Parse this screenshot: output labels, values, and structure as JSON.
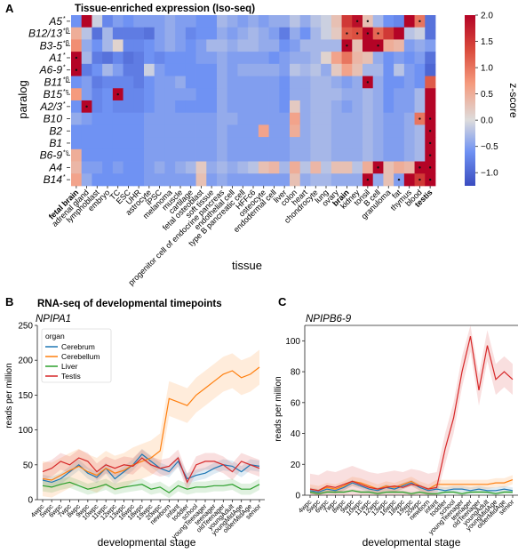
{
  "panels": {
    "a": "A",
    "b": "B",
    "c": "C"
  },
  "chart_data": [
    {
      "type": "heatmap",
      "title": "Tissue-enriched expression (Iso-seq)",
      "ylabel": "paralog",
      "xlabel": "tissue",
      "rows": [
        {
          "label": "A5",
          "sup": "*"
        },
        {
          "label": "B12/13",
          "sup": "*β"
        },
        {
          "label": "B3-5",
          "sup": "*β"
        },
        {
          "label": "A1",
          "sup": "*"
        },
        {
          "label": "A6-9",
          "sup": "*"
        },
        {
          "label": "B11",
          "sup": "*β"
        },
        {
          "label": "B15",
          "sup": "*s"
        },
        {
          "label": "A2/3",
          "sup": "*"
        },
        {
          "label": "B10",
          "sup": ""
        },
        {
          "label": "B2",
          "sup": ""
        },
        {
          "label": "B1",
          "sup": ""
        },
        {
          "label": "B6-9",
          "sup": "*s"
        },
        {
          "label": "A4",
          "sup": ""
        },
        {
          "label": "B14",
          "sup": "*"
        }
      ],
      "columns": [
        "fetal brain",
        "adrenal gland",
        "lymphoblast",
        "embryo",
        "TC",
        "ESC",
        "UHR",
        "astrocyte",
        "iPSC",
        "melanoma",
        "muscle",
        "cartilage",
        "fetal osteoblast",
        "soft tissue",
        "progenitor cell of endocrine pancreas",
        "endothelial cell",
        "type B pancreatic cell",
        "HFFc6",
        "osteocyte",
        "endodermal cell",
        "liver",
        "colon",
        "heart",
        "chondrocyte",
        "lung",
        "ovary",
        "brain",
        "kidney",
        "tonsil",
        "B cell",
        "granuloma",
        "fat",
        "thymus",
        "blood",
        "testis"
      ],
      "bold_columns": [
        "fetal brain",
        "brain",
        "testis"
      ],
      "values": [
        [
          -0.6,
          2.0,
          -0.1,
          -0.7,
          -0.5,
          -0.6,
          -0.5,
          -0.5,
          -0.5,
          -0.4,
          -0.5,
          -0.5,
          -0.6,
          -0.6,
          -0.3,
          -0.4,
          -0.5,
          -0.4,
          -0.5,
          -0.4,
          -0.4,
          -0.2,
          -0.4,
          -0.2,
          -0.1,
          0.3,
          1.5,
          1.9,
          0.3,
          -0.3,
          -0.6,
          -0.7,
          2.0,
          1.0,
          -0.9
        ],
        [
          0.5,
          -0.2,
          -0.9,
          -0.3,
          -0.8,
          -0.8,
          -0.8,
          -0.9,
          -0.5,
          -0.4,
          -0.5,
          -0.7,
          -0.6,
          -0.6,
          -0.4,
          -0.5,
          -0.4,
          -0.3,
          -0.4,
          -0.5,
          -0.8,
          -0.4,
          -0.6,
          -0.3,
          -0.1,
          0.2,
          1.2,
          1.3,
          2.0,
          1.1,
          1.5,
          2.0,
          -0.2,
          -0.1,
          -0.9
        ],
        [
          0.8,
          -0.4,
          -0.6,
          -0.3,
          0.1,
          -0.7,
          -0.7,
          -0.6,
          -0.5,
          -0.4,
          -0.5,
          -0.6,
          -0.5,
          -0.3,
          -0.3,
          -0.4,
          -0.3,
          -0.3,
          -0.4,
          -0.4,
          -0.6,
          -0.5,
          -0.3,
          -0.3,
          -0.3,
          -0.3,
          2.0,
          0.3,
          2.0,
          2.0,
          0.5,
          0.4,
          -0.5,
          -0.4,
          -0.5
        ],
        [
          2.0,
          -0.3,
          -0.8,
          -0.9,
          -0.7,
          -0.9,
          -0.8,
          -0.6,
          -0.7,
          -0.6,
          -0.6,
          -0.6,
          -0.5,
          -0.5,
          -0.4,
          -0.5,
          -0.5,
          -0.5,
          -0.5,
          -0.6,
          -0.5,
          -0.4,
          -0.4,
          -0.3,
          0.1,
          0.6,
          1.0,
          0.4,
          0.3,
          -0.4,
          -0.6,
          -0.5,
          -0.6,
          -0.5,
          -0.9
        ],
        [
          2.0,
          -0.8,
          -0.6,
          -0.3,
          -0.5,
          -0.8,
          -0.8,
          -0.1,
          -0.5,
          -0.6,
          -0.6,
          -0.6,
          -0.6,
          -0.6,
          -0.4,
          -0.5,
          -0.4,
          -0.4,
          -0.4,
          -0.4,
          -0.5,
          -0.2,
          -0.3,
          -0.2,
          -0.4,
          0.2,
          0.6,
          0.3,
          -0.3,
          -0.3,
          -0.6,
          -0.2,
          -0.5,
          -0.6,
          -1.0
        ],
        [
          -0.6,
          -0.5,
          -0.8,
          -0.7,
          -0.7,
          -0.7,
          -0.8,
          -0.6,
          -0.5,
          -0.5,
          -0.4,
          -0.6,
          -0.6,
          -0.6,
          -0.4,
          -0.5,
          -0.5,
          -0.5,
          -0.5,
          -0.5,
          -0.6,
          -0.4,
          -0.4,
          -0.3,
          -0.3,
          -0.4,
          -0.5,
          -0.4,
          2.0,
          -0.4,
          -0.6,
          -0.6,
          -0.5,
          -0.6,
          1.2
        ],
        [
          0.7,
          -0.5,
          -0.7,
          -0.6,
          2.0,
          -0.7,
          -0.7,
          -0.6,
          -0.5,
          -0.5,
          -0.5,
          -0.5,
          -0.6,
          -0.6,
          -0.4,
          -0.5,
          -0.5,
          -0.5,
          -0.5,
          -0.5,
          -0.6,
          -0.4,
          -0.4,
          -0.3,
          -0.3,
          -0.3,
          -0.4,
          -0.4,
          -0.3,
          -0.4,
          -0.6,
          -0.5,
          -0.5,
          -0.3,
          2.0
        ],
        [
          -0.6,
          2.0,
          -0.7,
          -0.6,
          -0.7,
          -0.7,
          -0.7,
          -0.6,
          -0.5,
          -0.5,
          -0.6,
          -0.6,
          -0.6,
          -0.6,
          -0.4,
          -0.5,
          -0.5,
          -0.5,
          -0.5,
          -0.5,
          -0.6,
          0.2,
          -0.4,
          -0.3,
          -0.3,
          -0.4,
          -0.5,
          -0.4,
          -0.3,
          -0.4,
          -0.6,
          -0.5,
          -0.5,
          -0.3,
          2.0
        ],
        [
          -0.4,
          -0.5,
          -0.6,
          -0.6,
          -0.6,
          -0.6,
          -0.6,
          -0.5,
          -0.5,
          -0.5,
          -0.5,
          -0.5,
          -0.5,
          -0.5,
          -0.4,
          -0.4,
          -0.5,
          -0.5,
          -0.5,
          -0.5,
          -0.5,
          0.6,
          -0.4,
          -0.3,
          -0.3,
          -0.4,
          -0.4,
          -0.4,
          -0.3,
          -0.4,
          -0.5,
          -0.5,
          -0.4,
          1.0,
          2.0
        ],
        [
          -0.6,
          -0.6,
          -0.6,
          -0.6,
          -0.6,
          -0.6,
          -0.6,
          -0.5,
          -0.5,
          -0.5,
          -0.5,
          -0.5,
          -0.5,
          -0.5,
          -0.4,
          -0.5,
          -0.5,
          -0.5,
          0.6,
          -0.5,
          -0.5,
          0.5,
          -0.4,
          -0.3,
          -0.3,
          -0.4,
          -0.4,
          -0.4,
          -0.3,
          -0.4,
          -0.5,
          -0.5,
          -0.4,
          -0.3,
          2.0
        ],
        [
          -0.6,
          -0.6,
          -0.6,
          -0.6,
          -0.6,
          -0.6,
          -0.6,
          -0.5,
          -0.5,
          -0.5,
          -0.5,
          -0.5,
          -0.5,
          -0.5,
          -0.4,
          -0.5,
          -0.5,
          -0.5,
          -0.5,
          -0.5,
          -0.5,
          -0.4,
          -0.4,
          -0.3,
          -0.3,
          -0.4,
          -0.4,
          -0.4,
          -0.3,
          -0.4,
          -0.5,
          -0.5,
          -0.4,
          -0.3,
          2.0
        ],
        [
          0.5,
          -0.6,
          -0.6,
          -0.6,
          -0.6,
          -0.6,
          -0.6,
          -0.5,
          -0.5,
          -0.5,
          -0.5,
          -0.5,
          -0.5,
          -0.5,
          -0.4,
          -0.5,
          -0.5,
          -0.5,
          -0.5,
          -0.5,
          -0.5,
          -0.4,
          -0.4,
          -0.3,
          -0.3,
          -0.4,
          -0.4,
          -0.4,
          -0.3,
          -0.4,
          -0.5,
          -0.5,
          -0.4,
          -0.3,
          2.0
        ],
        [
          0.4,
          -0.5,
          -0.5,
          -0.6,
          -0.5,
          -0.6,
          -0.6,
          -0.5,
          -0.4,
          -0.5,
          -0.4,
          -0.3,
          0.2,
          -0.4,
          -0.3,
          -0.4,
          -0.3,
          -0.2,
          0.3,
          0.4,
          -0.3,
          0.5,
          -0.2,
          0.4,
          -0.2,
          0.3,
          0.3,
          -0.2,
          0.5,
          2.0,
          0.3,
          0.5,
          0.4,
          2.0,
          2.0
        ],
        [
          0.6,
          -0.4,
          -0.6,
          -0.6,
          -0.6,
          -0.6,
          -0.6,
          -0.5,
          -0.5,
          -0.5,
          -0.5,
          -0.5,
          0.3,
          -0.5,
          -0.4,
          -0.5,
          -0.5,
          -0.5,
          -0.5,
          -0.5,
          -0.5,
          0.3,
          -0.4,
          -0.3,
          -0.3,
          -0.4,
          -0.4,
          -0.4,
          2.0,
          -0.4,
          0.3,
          -0.5,
          2.0,
          1.5,
          2.0
        ]
      ],
      "markers": [
        [
          0,
          27
        ],
        [
          0,
          28
        ],
        [
          0,
          33
        ],
        [
          1,
          26
        ],
        [
          1,
          27
        ],
        [
          1,
          28
        ],
        [
          1,
          29
        ],
        [
          2,
          26
        ],
        [
          2,
          29
        ],
        [
          3,
          0
        ],
        [
          4,
          0
        ],
        [
          5,
          28
        ],
        [
          6,
          4
        ],
        [
          7,
          1
        ],
        [
          8,
          33
        ],
        [
          8,
          34
        ],
        [
          9,
          34
        ],
        [
          10,
          34
        ],
        [
          11,
          34
        ],
        [
          12,
          29
        ],
        [
          12,
          33
        ],
        [
          12,
          34
        ],
        [
          13,
          28
        ],
        [
          13,
          31
        ],
        [
          13,
          33
        ],
        [
          13,
          34
        ]
      ],
      "colorbar": {
        "label": "z-score",
        "min": -1.25,
        "max": 2.0,
        "ticks": [
          "2.0",
          "1.5",
          "1.0",
          "0.5",
          "0.0",
          "−0.5",
          "−1.0"
        ]
      },
      "colors": {
        "low": "#3a4cc0",
        "mid": "#dddcdc",
        "high": "#b40426"
      }
    },
    {
      "type": "line",
      "title": "RNA-seq of developmental timepoints",
      "subtitle": "NPIPA1",
      "xlabel": "developmental stage",
      "ylabel": "reads per million",
      "ylim": [
        0,
        250
      ],
      "yticks": [
        0,
        50,
        100,
        150,
        200,
        250
      ],
      "x": [
        "4wpc",
        "5wpc",
        "6wpc",
        "7wpc",
        "8wpc",
        "9wpc",
        "10wpc",
        "11wpc",
        "12wpc",
        "13wpc",
        "16wpc",
        "18wpc",
        "19wpc",
        "20wpc",
        "newborn",
        "infant",
        "toddler",
        "school",
        "youngTeenager",
        "teenager",
        "oldTeenager",
        "youngAdult",
        "youngMidAge",
        "olderMidAge",
        "senior"
      ],
      "legend": {
        "title": "organ",
        "placement": "upper-left"
      },
      "series": [
        {
          "name": "Cerebrum",
          "color": "#1f77b4",
          "values": [
            28,
            25,
            30,
            40,
            50,
            38,
            32,
            45,
            30,
            40,
            50,
            65,
            55,
            45,
            40,
            55,
            30,
            35,
            38,
            45,
            50,
            48,
            40,
            50,
            48
          ],
          "band": 8
        },
        {
          "name": "Cerebellum",
          "color": "#ff7f0e",
          "values": [
            30,
            28,
            35,
            42,
            48,
            40,
            35,
            45,
            38,
            42,
            50,
            55,
            60,
            70,
            145,
            140,
            135,
            150,
            160,
            170,
            180,
            185,
            175,
            180,
            190
          ],
          "band": 25
        },
        {
          "name": "Liver",
          "color": "#2ca02c",
          "values": [
            20,
            18,
            22,
            25,
            20,
            15,
            18,
            22,
            15,
            18,
            20,
            22,
            15,
            18,
            10,
            20,
            15,
            18,
            18,
            20,
            20,
            22,
            15,
            15,
            22
          ],
          "band": 8
        },
        {
          "name": "Testis",
          "color": "#d62728",
          "values": [
            40,
            45,
            55,
            50,
            60,
            55,
            40,
            50,
            45,
            50,
            48,
            60,
            50,
            45,
            48,
            60,
            25,
            50,
            55,
            55,
            50,
            40,
            55,
            50,
            45
          ],
          "band": 12
        }
      ]
    },
    {
      "type": "line",
      "subtitle": "NPIPB6-9",
      "xlabel": "developmental stage",
      "ylabel": "reads per million",
      "ylim": [
        0,
        110
      ],
      "yticks": [
        0,
        20,
        40,
        60,
        80,
        100
      ],
      "x": [
        "4wpc",
        "5wpc",
        "6wpc",
        "7wpc",
        "8wpc",
        "9wpc",
        "10wpc",
        "11wpc",
        "12wpc",
        "13wpc",
        "16wpc",
        "18wpc",
        "19wpc",
        "20wpc",
        "newborn",
        "infant",
        "toddler",
        "school",
        "youngTeenager",
        "teenager",
        "oldTeenager",
        "youngAdult",
        "youngMidAge",
        "olderMidAge",
        "senior"
      ],
      "series": [
        {
          "name": "Cerebrum",
          "color": "#1f77b4",
          "values": [
            3,
            2,
            4,
            3,
            5,
            8,
            6,
            4,
            3,
            5,
            4,
            6,
            8,
            5,
            3,
            4,
            3,
            4,
            4,
            3,
            4,
            3,
            3,
            4,
            3
          ],
          "band": 2
        },
        {
          "name": "Cerebellum",
          "color": "#ff7f0e",
          "values": [
            4,
            3,
            5,
            4,
            6,
            9,
            8,
            6,
            4,
            6,
            5,
            7,
            9,
            6,
            4,
            7,
            7,
            7,
            7,
            7,
            7,
            7,
            8,
            8,
            10
          ],
          "band": 3
        },
        {
          "name": "Liver",
          "color": "#2ca02c",
          "values": [
            2,
            1,
            2,
            2,
            2,
            3,
            2,
            2,
            1,
            2,
            2,
            2,
            1,
            2,
            1,
            1,
            2,
            2,
            1,
            2,
            2,
            2,
            1,
            2,
            2
          ],
          "band": 1
        },
        {
          "name": "Testis",
          "color": "#d62728",
          "values": [
            4,
            3,
            6,
            5,
            7,
            9,
            7,
            5,
            4,
            5,
            6,
            5,
            7,
            6,
            4,
            5,
            30,
            50,
            80,
            103,
            68,
            97,
            75,
            80,
            75
          ],
          "band": 10
        }
      ]
    }
  ]
}
